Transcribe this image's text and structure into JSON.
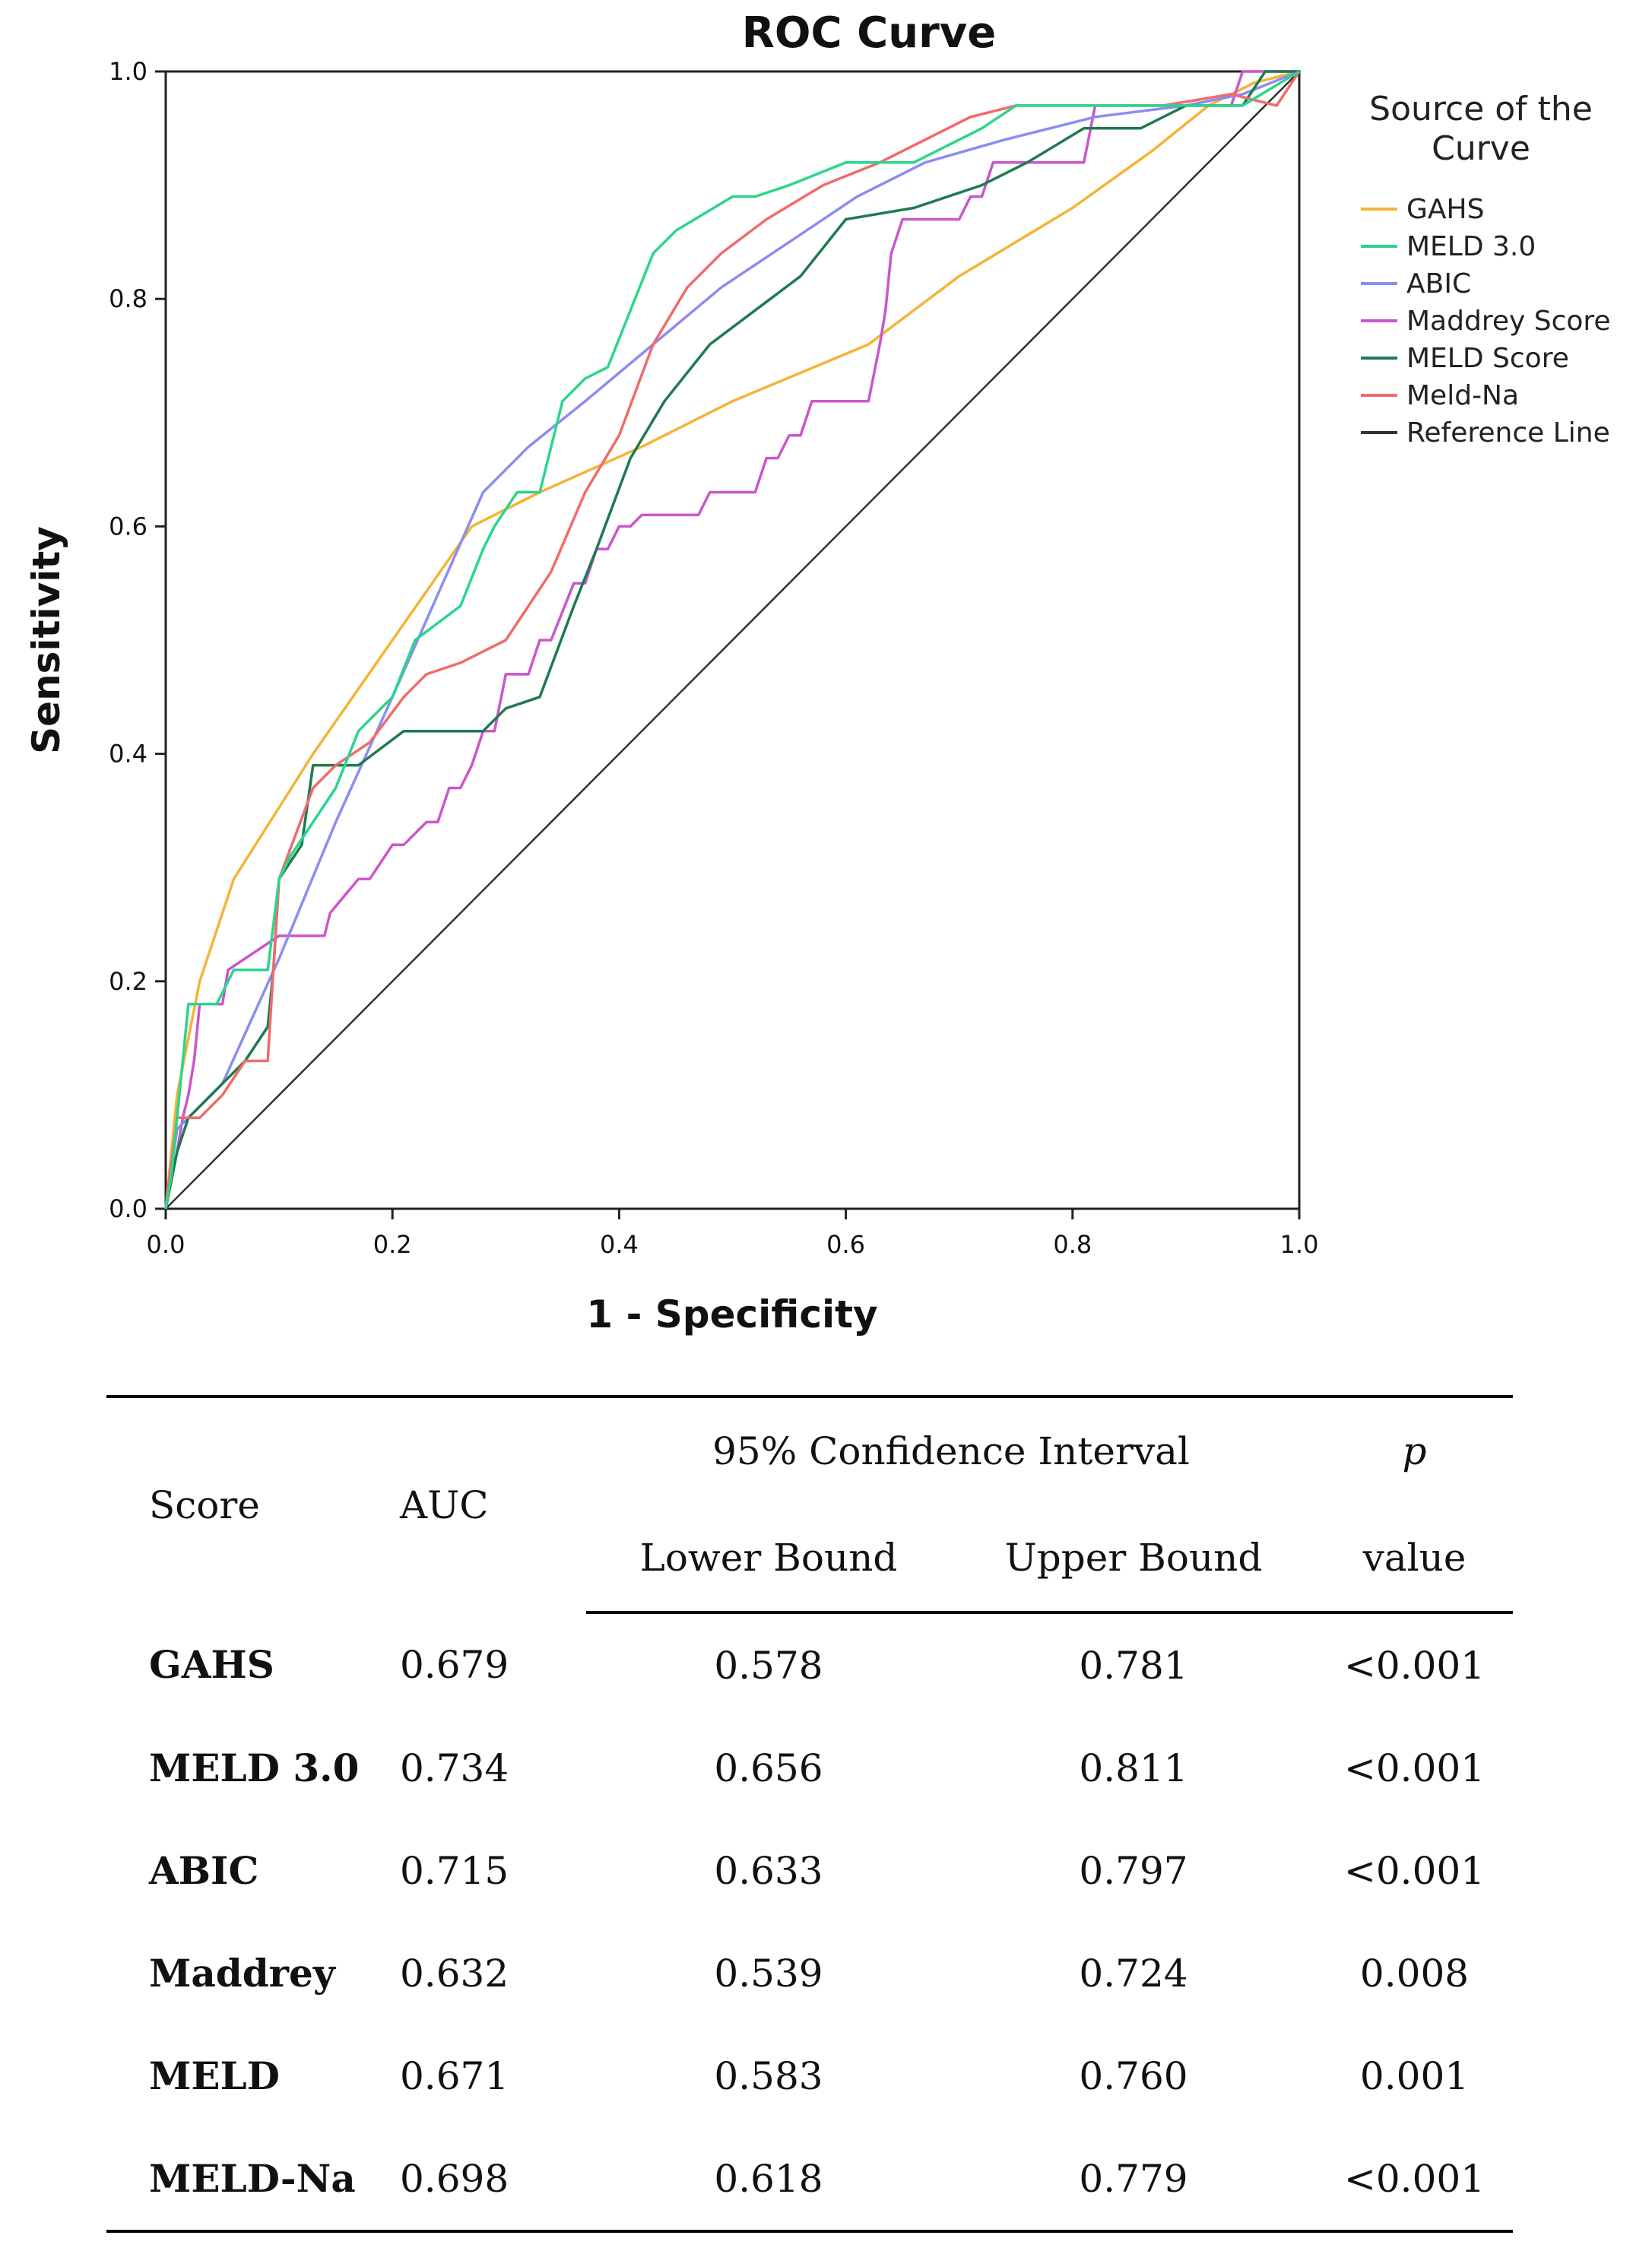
{
  "chart_data": {
    "type": "line",
    "title": "ROC Curve",
    "xlabel": "1 - Specificity",
    "ylabel": "Sensitivity",
    "xlim": [
      0,
      1
    ],
    "ylim": [
      0,
      1
    ],
    "xticks": [
      "0.0",
      "0.2",
      "0.4",
      "0.6",
      "0.8",
      "1.0"
    ],
    "yticks": [
      "0.0",
      "0.2",
      "0.4",
      "0.6",
      "0.8",
      "1.0"
    ],
    "grid": false,
    "legend_title": "Source of the Curve",
    "legend_position": "right",
    "series": [
      {
        "name": "GAHS",
        "color": "#f5b336",
        "x": [
          0,
          0.01,
          0.03,
          0.06,
          0.13,
          0.2,
          0.27,
          0.33,
          0.42,
          0.5,
          0.62,
          0.7,
          0.8,
          0.87,
          0.92,
          0.96,
          1.0
        ],
        "y": [
          0,
          0.1,
          0.2,
          0.29,
          0.4,
          0.5,
          0.6,
          0.63,
          0.67,
          0.71,
          0.76,
          0.82,
          0.88,
          0.93,
          0.97,
          0.99,
          1.0
        ]
      },
      {
        "name": "MELD 3.0",
        "color": "#2dd58c",
        "x": [
          0,
          0.005,
          0.01,
          0.015,
          0.02,
          0.045,
          0.06,
          0.09,
          0.1,
          0.11,
          0.13,
          0.15,
          0.17,
          0.2,
          0.22,
          0.26,
          0.28,
          0.29,
          0.31,
          0.33,
          0.35,
          0.37,
          0.39,
          0.43,
          0.45,
          0.5,
          0.52,
          0.55,
          0.6,
          0.66,
          0.72,
          0.75,
          0.8,
          0.9,
          0.95,
          1.0
        ],
        "y": [
          0,
          0.03,
          0.08,
          0.13,
          0.18,
          0.18,
          0.21,
          0.21,
          0.29,
          0.31,
          0.34,
          0.37,
          0.42,
          0.45,
          0.5,
          0.53,
          0.58,
          0.6,
          0.63,
          0.63,
          0.71,
          0.73,
          0.74,
          0.84,
          0.86,
          0.89,
          0.89,
          0.9,
          0.92,
          0.92,
          0.95,
          0.97,
          0.97,
          0.97,
          0.97,
          1.0
        ]
      },
      {
        "name": "ABIC",
        "color": "#8c8cf2",
        "x": [
          0,
          0.01,
          0.05,
          0.1,
          0.15,
          0.2,
          0.24,
          0.28,
          0.32,
          0.37,
          0.43,
          0.49,
          0.55,
          0.61,
          0.67,
          0.74,
          0.82,
          0.9,
          0.95,
          1.0
        ],
        "y": [
          0,
          0.07,
          0.11,
          0.22,
          0.34,
          0.45,
          0.54,
          0.63,
          0.67,
          0.71,
          0.76,
          0.81,
          0.85,
          0.89,
          0.92,
          0.94,
          0.96,
          0.97,
          0.98,
          1.0
        ]
      },
      {
        "name": "Maddrey Score",
        "color": "#cc55cc",
        "x": [
          0,
          0.01,
          0.015,
          0.02,
          0.025,
          0.03,
          0.05,
          0.055,
          0.1,
          0.14,
          0.145,
          0.17,
          0.18,
          0.2,
          0.21,
          0.23,
          0.24,
          0.25,
          0.26,
          0.27,
          0.28,
          0.29,
          0.3,
          0.32,
          0.33,
          0.34,
          0.36,
          0.37,
          0.38,
          0.39,
          0.4,
          0.41,
          0.42,
          0.47,
          0.48,
          0.52,
          0.53,
          0.54,
          0.55,
          0.56,
          0.57,
          0.62,
          0.63,
          0.635,
          0.64,
          0.65,
          0.7,
          0.71,
          0.72,
          0.73,
          0.74,
          0.75,
          0.76,
          0.81,
          0.82,
          0.94,
          0.95,
          0.97,
          1.0
        ],
        "y": [
          0,
          0.05,
          0.08,
          0.1,
          0.13,
          0.18,
          0.18,
          0.21,
          0.24,
          0.24,
          0.26,
          0.29,
          0.29,
          0.32,
          0.32,
          0.34,
          0.34,
          0.37,
          0.37,
          0.39,
          0.42,
          0.42,
          0.47,
          0.47,
          0.5,
          0.5,
          0.55,
          0.55,
          0.58,
          0.58,
          0.6,
          0.6,
          0.61,
          0.61,
          0.63,
          0.63,
          0.66,
          0.66,
          0.68,
          0.68,
          0.71,
          0.71,
          0.76,
          0.79,
          0.84,
          0.87,
          0.87,
          0.89,
          0.89,
          0.92,
          0.92,
          0.92,
          0.92,
          0.92,
          0.97,
          0.97,
          1.0,
          1.0,
          1.0
        ]
      },
      {
        "name": "MELD Score",
        "color": "#1e7a4f",
        "x": [
          0,
          0.01,
          0.02,
          0.05,
          0.07,
          0.09,
          0.095,
          0.1,
          0.12,
          0.13,
          0.17,
          0.21,
          0.24,
          0.28,
          0.3,
          0.33,
          0.36,
          0.38,
          0.41,
          0.44,
          0.48,
          0.52,
          0.56,
          0.6,
          0.66,
          0.72,
          0.76,
          0.81,
          0.86,
          0.9,
          0.95,
          0.97,
          1.0
        ],
        "y": [
          0,
          0.05,
          0.08,
          0.11,
          0.13,
          0.16,
          0.21,
          0.29,
          0.32,
          0.39,
          0.39,
          0.42,
          0.42,
          0.42,
          0.44,
          0.45,
          0.53,
          0.58,
          0.66,
          0.71,
          0.76,
          0.79,
          0.82,
          0.87,
          0.88,
          0.9,
          0.92,
          0.95,
          0.95,
          0.97,
          0.97,
          1.0,
          1.0
        ]
      },
      {
        "name": "Meld-Na",
        "color": "#f06b6b",
        "x": [
          0,
          0.01,
          0.03,
          0.05,
          0.07,
          0.09,
          0.095,
          0.1,
          0.13,
          0.15,
          0.18,
          0.21,
          0.23,
          0.26,
          0.3,
          0.34,
          0.37,
          0.4,
          0.43,
          0.46,
          0.49,
          0.53,
          0.58,
          0.63,
          0.67,
          0.71,
          0.75,
          0.8,
          0.88,
          0.94,
          0.98,
          1.0
        ],
        "y": [
          0,
          0.08,
          0.08,
          0.1,
          0.13,
          0.13,
          0.21,
          0.29,
          0.37,
          0.39,
          0.41,
          0.45,
          0.47,
          0.48,
          0.5,
          0.56,
          0.63,
          0.68,
          0.76,
          0.81,
          0.84,
          0.87,
          0.9,
          0.92,
          0.94,
          0.96,
          0.97,
          0.97,
          0.97,
          0.98,
          0.97,
          1.0
        ]
      },
      {
        "name": "Reference Line",
        "color": "#333333",
        "x": [
          0,
          1
        ],
        "y": [
          0,
          1
        ]
      }
    ]
  },
  "table": {
    "headers": {
      "score": "Score",
      "auc": "AUC",
      "ci": "95% Confidence Interval",
      "p_top": "p",
      "lower": "Lower Bound",
      "upper": "Upper Bound",
      "p_bottom": "value"
    },
    "rows": [
      {
        "score": "GAHS",
        "auc": "0.679",
        "lower": "0.578",
        "upper": "0.781",
        "p": "<0.001"
      },
      {
        "score": "MELD 3.0",
        "auc": "0.734",
        "lower": "0.656",
        "upper": "0.811",
        "p": "<0.001"
      },
      {
        "score": "ABIC",
        "auc": "0.715",
        "lower": "0.633",
        "upper": "0.797",
        "p": "<0.001"
      },
      {
        "score": "Maddrey",
        "auc": "0.632",
        "lower": "0.539",
        "upper": "0.724",
        "p": "0.008"
      },
      {
        "score": "MELD",
        "auc": "0.671",
        "lower": "0.583",
        "upper": "0.760",
        "p": "0.001"
      },
      {
        "score": "MELD-Na",
        "auc": "0.698",
        "lower": "0.618",
        "upper": "0.779",
        "p": "<0.001"
      }
    ]
  }
}
